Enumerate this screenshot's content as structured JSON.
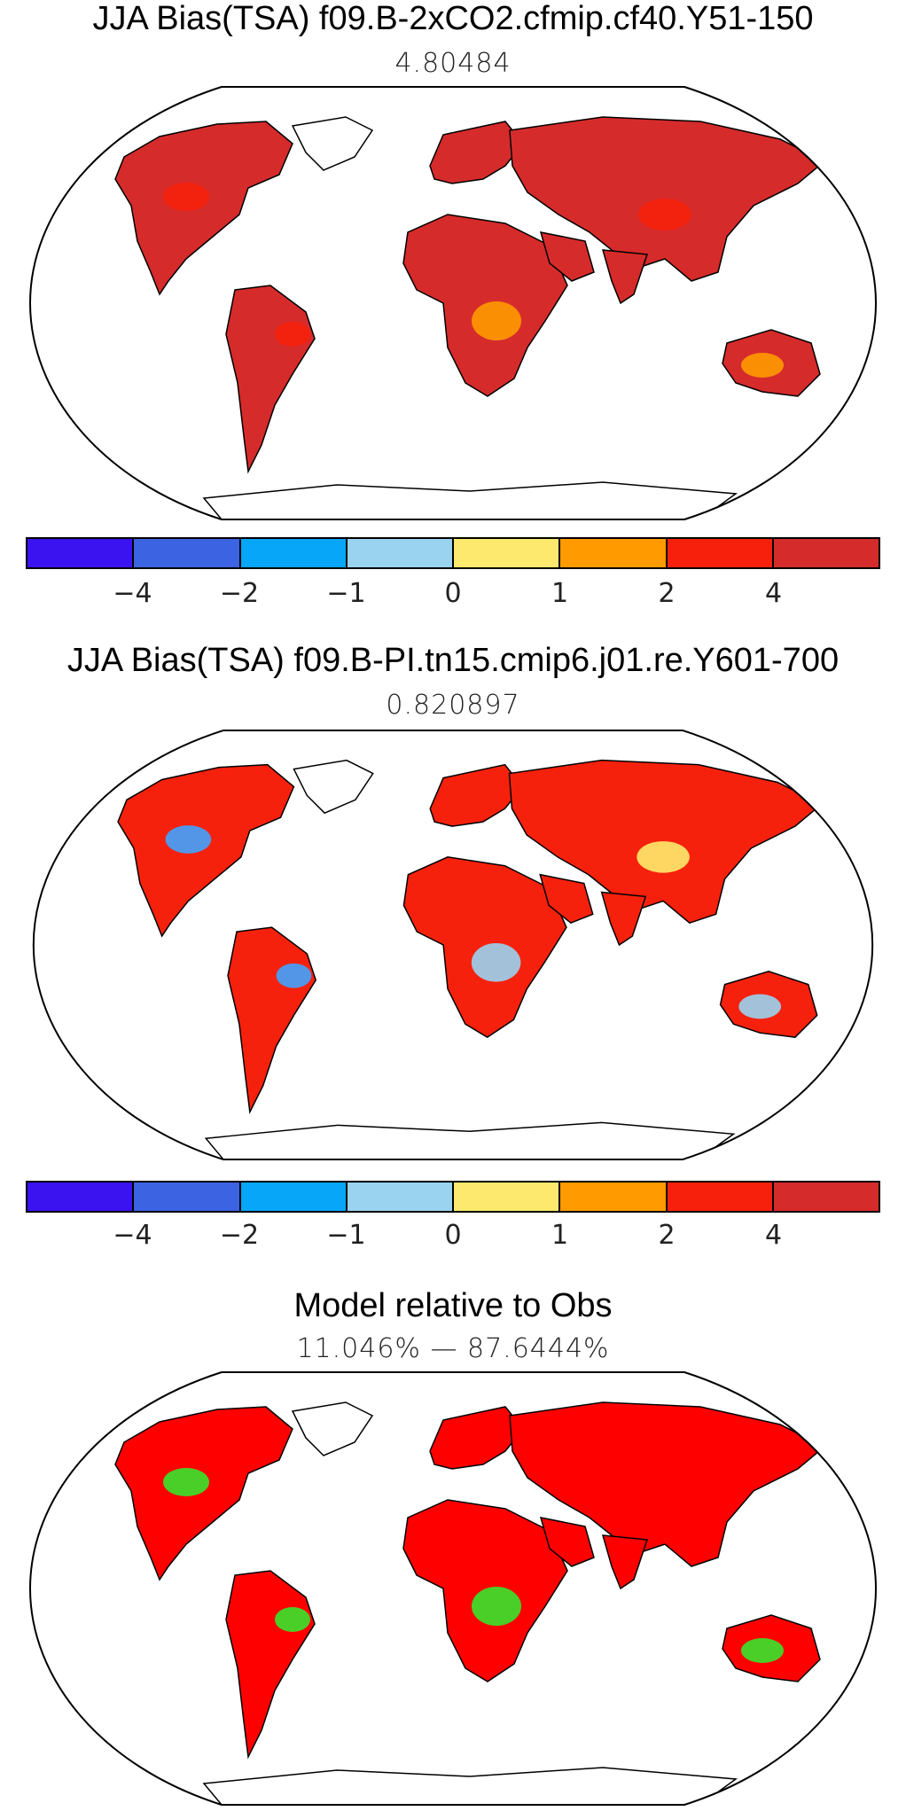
{
  "panels": [
    {
      "title": "JJA Bias(TSA) f09.B-2xCO2.cfmip.cf40.Y51-150",
      "subtitle": "4.80484",
      "fill": "#d62b2b",
      "patches": [
        "#f5210c",
        "#ff9a00",
        "#f5210c"
      ]
    },
    {
      "title": "JJA Bias(TSA) f09.B-PI.tn15.cmip6.j01.re.Y601-700",
      "subtitle": "0.820897",
      "fill": "#f5210c",
      "patches": [
        "#41a3ff",
        "#9ad3f0",
        "#ffea6b"
      ]
    },
    {
      "title": "Model relative to Obs",
      "subtitle": "11.046% — 87.6444%",
      "fill": "#ff0000",
      "patches": [
        "#35e62b",
        "#35e62b",
        "#ff0000"
      ]
    }
  ],
  "colorbar": {
    "colors": [
      "#3a13f0",
      "#3c63e2",
      "#07a6f8",
      "#99d3ef",
      "#fde96d",
      "#ff9a00",
      "#f6200c",
      "#d62b2b"
    ],
    "tick_labels": [
      "−4",
      "−2",
      "−1",
      "0",
      "1",
      "2",
      "4"
    ]
  }
}
